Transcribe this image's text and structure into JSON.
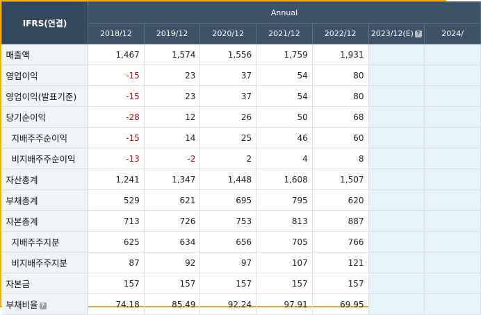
{
  "header": {
    "corner_label": "IFRS(연결)",
    "group_label": "Annual",
    "years": [
      "2018/12",
      "2019/12",
      "2020/12",
      "2021/12",
      "2022/12",
      "2023/12(E)",
      "2024/"
    ],
    "help_icon": "?"
  },
  "rows": [
    {
      "label": "매출액",
      "indent": false,
      "help": false,
      "values": [
        "1,467",
        "1,574",
        "1,556",
        "1,759",
        "1,931"
      ]
    },
    {
      "label": "영업이익",
      "indent": false,
      "help": false,
      "values": [
        "-15",
        "23",
        "37",
        "54",
        "80"
      ]
    },
    {
      "label": "영업이익(발표기준)",
      "indent": false,
      "help": false,
      "values": [
        "-15",
        "23",
        "37",
        "54",
        "80"
      ]
    },
    {
      "label": "당기순이익",
      "indent": false,
      "help": false,
      "values": [
        "-28",
        "12",
        "26",
        "50",
        "68"
      ]
    },
    {
      "label": "지배주주순이익",
      "indent": true,
      "help": false,
      "values": [
        "-15",
        "14",
        "25",
        "46",
        "60"
      ]
    },
    {
      "label": "비지배주주순이익",
      "indent": true,
      "help": false,
      "values": [
        "-13",
        "-2",
        "2",
        "4",
        "8"
      ]
    },
    {
      "label": "자산총계",
      "indent": false,
      "help": false,
      "values": [
        "1,241",
        "1,347",
        "1,448",
        "1,608",
        "1,507"
      ]
    },
    {
      "label": "부채총계",
      "indent": false,
      "help": false,
      "values": [
        "529",
        "621",
        "695",
        "795",
        "620"
      ]
    },
    {
      "label": "자본총계",
      "indent": false,
      "help": false,
      "values": [
        "713",
        "726",
        "753",
        "813",
        "887"
      ]
    },
    {
      "label": "지배주주지분",
      "indent": true,
      "help": false,
      "values": [
        "625",
        "634",
        "656",
        "705",
        "766"
      ]
    },
    {
      "label": "비지배주주지분",
      "indent": true,
      "help": false,
      "values": [
        "87",
        "92",
        "97",
        "107",
        "121"
      ]
    },
    {
      "label": "자본금",
      "indent": false,
      "help": false,
      "values": [
        "157",
        "157",
        "157",
        "157",
        "157"
      ]
    },
    {
      "label": "부채비율",
      "indent": false,
      "help": true,
      "values": [
        "74.18",
        "85.49",
        "92.24",
        "97.91",
        "69.95"
      ]
    }
  ],
  "colors": {
    "header_bg": "#3e5367",
    "label_bg": "#f0f3f7",
    "estimate_bg": "#e6f4fa",
    "negative": "#d0021b",
    "frame": "#f5a623"
  }
}
